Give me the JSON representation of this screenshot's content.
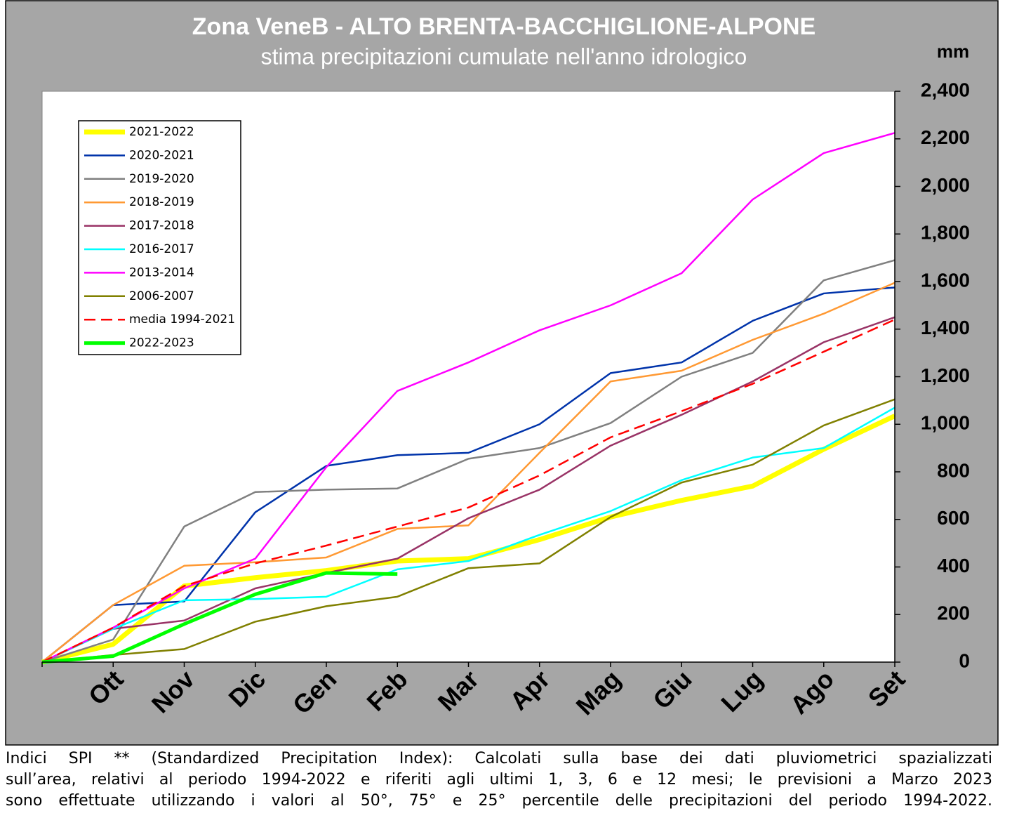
{
  "chart_data": {
    "type": "line",
    "title": "Zona VeneB -  ALTO BRENTA-BACCHIGLIONE-ALPONE",
    "subtitle": "stima precipitazioni  cumulate nell'anno idrologico",
    "y_label": "mm",
    "categories": [
      null,
      "Ott",
      "Nov",
      "Dic",
      "Gen",
      "Feb",
      "Mar",
      "Apr",
      "Mag",
      "Giu",
      "Lug",
      "Ago",
      "Set"
    ],
    "series": [
      {
        "name": "2021-2022",
        "color": "#ffff00",
        "line_width": 7,
        "values": [
          0,
          75,
          320,
          355,
          385,
          425,
          435,
          515,
          610,
          680,
          740,
          895,
          1035
        ]
      },
      {
        "name": "2020-2021",
        "color": "#0033aa",
        "line_width": 2.5,
        "values": [
          0,
          240,
          255,
          630,
          825,
          870,
          880,
          1000,
          1215,
          1260,
          1435,
          1550,
          1575
        ]
      },
      {
        "name": "2019-2020",
        "color": "#808080",
        "line_width": 2.5,
        "values": [
          0,
          95,
          570,
          715,
          725,
          730,
          855,
          900,
          1005,
          1200,
          1300,
          1605,
          1690
        ]
      },
      {
        "name": "2018-2019",
        "color": "#ff9933",
        "line_width": 2.5,
        "values": [
          0,
          240,
          405,
          420,
          440,
          560,
          575,
          880,
          1180,
          1225,
          1355,
          1465,
          1595
        ]
      },
      {
        "name": "2017-2018",
        "color": "#993366",
        "line_width": 2.5,
        "values": [
          0,
          140,
          175,
          310,
          375,
          435,
          605,
          725,
          910,
          1040,
          1180,
          1345,
          1450
        ]
      },
      {
        "name": "2016-2017",
        "color": "#00ffff",
        "line_width": 2.5,
        "values": [
          0,
          140,
          260,
          265,
          275,
          390,
          425,
          535,
          635,
          765,
          860,
          900,
          1070
        ]
      },
      {
        "name": "2013-2014",
        "color": "#ff00ff",
        "line_width": 2.5,
        "values": [
          0,
          145,
          310,
          435,
          820,
          1140,
          1260,
          1395,
          1500,
          1635,
          1945,
          2140,
          2225
        ]
      },
      {
        "name": "2006-2007",
        "color": "#808000",
        "line_width": 2.5,
        "values": [
          0,
          30,
          55,
          170,
          235,
          275,
          395,
          415,
          610,
          755,
          830,
          995,
          1105
        ]
      },
      {
        "name": "media 1994-2021",
        "color": "#ff0000",
        "line_width": 2.5,
        "dashed": true,
        "values": [
          0,
          145,
          320,
          415,
          490,
          570,
          650,
          785,
          945,
          1055,
          1170,
          1305,
          1440
        ]
      },
      {
        "name": "2022-2023",
        "color": "#00ff00",
        "line_width": 5,
        "values": [
          0,
          25,
          160,
          285,
          375,
          370,
          null,
          null,
          null,
          null,
          null,
          null,
          null
        ]
      }
    ],
    "ylim": [
      0,
      2400
    ],
    "yticks": [
      0,
      200,
      400,
      600,
      800,
      {
        "value": 1000,
        "label": "1,000"
      },
      {
        "value": 1200,
        "label": "1,200"
      },
      {
        "value": 1400,
        "label": "1,400"
      },
      {
        "value": 1600,
        "label": "1,600"
      },
      {
        "value": 1800,
        "label": "1,800"
      },
      {
        "value": 2000,
        "label": "2,000"
      },
      {
        "value": 2200,
        "label": "2,200"
      },
      {
        "value": 2400,
        "label": "2,400"
      }
    ],
    "y_axis_side": "right",
    "grid": "x",
    "legend": "top-left",
    "footnote": [
      "Indici SPI ** (Standardized Precipitation Index): Calcolati sulla base dei dati pluviometrici spazializzati",
      "sull’area, relativi al periodo 1994-2022 e riferiti agli ultimi 1, 3, 6 e 12 mesi; le previsioni a Marzo 2023",
      "sono effettuate utilizzando i valori al 50°, 75° e 25° percentile delle precipitazioni del periodo 1994-2022."
    ]
  }
}
